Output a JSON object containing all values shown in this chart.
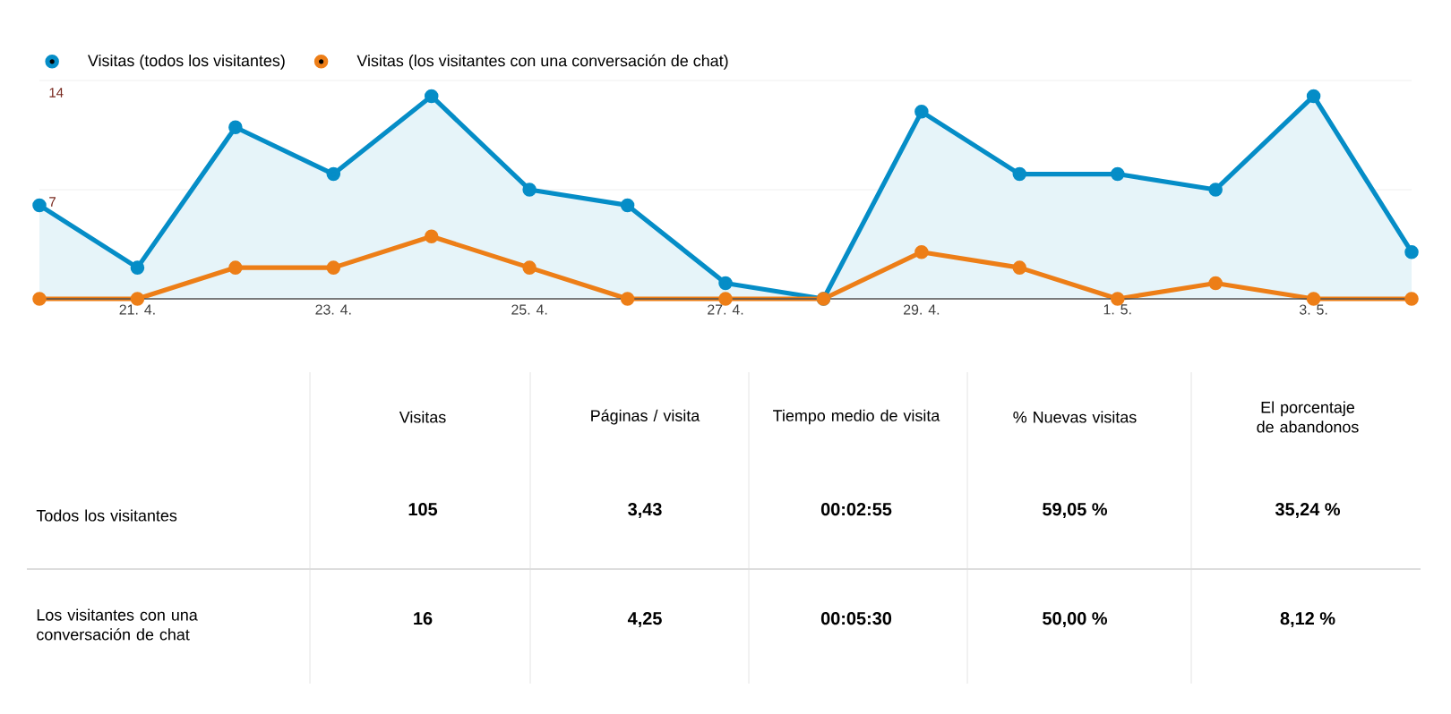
{
  "chart_data": [
    {
      "type": "line",
      "categories": [
        null,
        "21. 4.",
        null,
        "23. 4.",
        null,
        "25. 4.",
        null,
        "27. 4.",
        null,
        "29. 4.",
        null,
        "1. 5.",
        null,
        "3. 5.",
        null
      ],
      "series": [
        {
          "name": "Visitas (todos los visitantes)",
          "type": "area",
          "color": "#058dc7",
          "values": [
            6,
            2,
            11,
            8,
            13,
            7,
            6,
            1,
            0,
            12,
            8,
            8,
            7,
            13,
            3
          ]
        },
        {
          "name": "Visitas (los visitantes con una conversación de chat)",
          "type": "line",
          "color": "#ed7e17",
          "values": [
            0,
            0,
            2,
            2,
            4,
            2,
            0,
            0,
            0,
            3,
            2,
            0,
            1,
            0,
            0
          ]
        }
      ],
      "ylim": [
        0,
        14
      ],
      "yticks": [
        7,
        14
      ],
      "grid": "y",
      "legend": "top left",
      "marker": "circle"
    },
    {
      "type": "other",
      "categories": [
        "Visitas",
        "Páginas / visita",
        "Tiempo medio de visita",
        "% Nuevas visitas",
        "El porcentaje de abandonos"
      ],
      "y_categories": [
        "Todos los visitantes",
        "Los visitantes con una conversación de chat"
      ],
      "cell_labels": [
        [
          "105",
          "3,43",
          "00:02:55",
          "59,05 %",
          "35,24 %"
        ],
        [
          "16",
          "4,25",
          "00:05:30",
          "50,00 %",
          "8,12 %"
        ]
      ]
    }
  ]
}
